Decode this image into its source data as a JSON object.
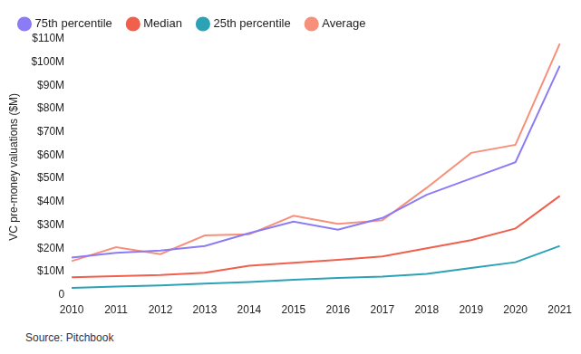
{
  "chart_data": {
    "type": "line",
    "y_label": "VC pre-money valuations ($M)",
    "source": "Source: Pitchbook",
    "categories": [
      "2010",
      "2011",
      "2012",
      "2013",
      "2014",
      "2015",
      "2016",
      "2017",
      "2018",
      "2019",
      "2020",
      "2021"
    ],
    "series": [
      {
        "name": "75th percentile",
        "color": "#8b7cf6",
        "values": [
          16,
          18,
          19,
          21,
          26.5,
          31.5,
          28,
          33,
          43,
          50,
          57,
          98.5
        ]
      },
      {
        "name": "Median",
        "color": "#f0604d",
        "values": [
          7.5,
          8,
          8.5,
          9.5,
          12.5,
          13.8,
          15,
          16.5,
          20,
          23.5,
          28.5,
          42.5
        ]
      },
      {
        "name": "25th percentile",
        "color": "#2ba3b5",
        "values": [
          3,
          3.5,
          4,
          4.8,
          5.5,
          6.5,
          7.2,
          7.8,
          9,
          11.5,
          14,
          21
        ]
      },
      {
        "name": "Average",
        "color": "#f7907a",
        "values": [
          14.5,
          20.5,
          17.5,
          25.5,
          26,
          34,
          30.5,
          32,
          46,
          61,
          64.5,
          108
        ]
      }
    ],
    "ylim": [
      0,
      110
    ],
    "yticks": [
      0,
      {
        "value": 10,
        "label": "$10M"
      },
      {
        "value": 20,
        "label": "$20M"
      },
      {
        "value": 30,
        "label": "$30M"
      },
      {
        "value": 40,
        "label": "$40M"
      },
      {
        "value": 50,
        "label": "$50M"
      },
      {
        "value": 60,
        "label": "$60M"
      },
      {
        "value": 70,
        "label": "$70M"
      },
      {
        "value": 80,
        "label": "$80M"
      },
      {
        "value": 90,
        "label": "$90M"
      },
      {
        "value": 100,
        "label": "$100M"
      },
      {
        "value": 110,
        "label": "$110M"
      }
    ],
    "grid": false,
    "legend": "top-left"
  }
}
